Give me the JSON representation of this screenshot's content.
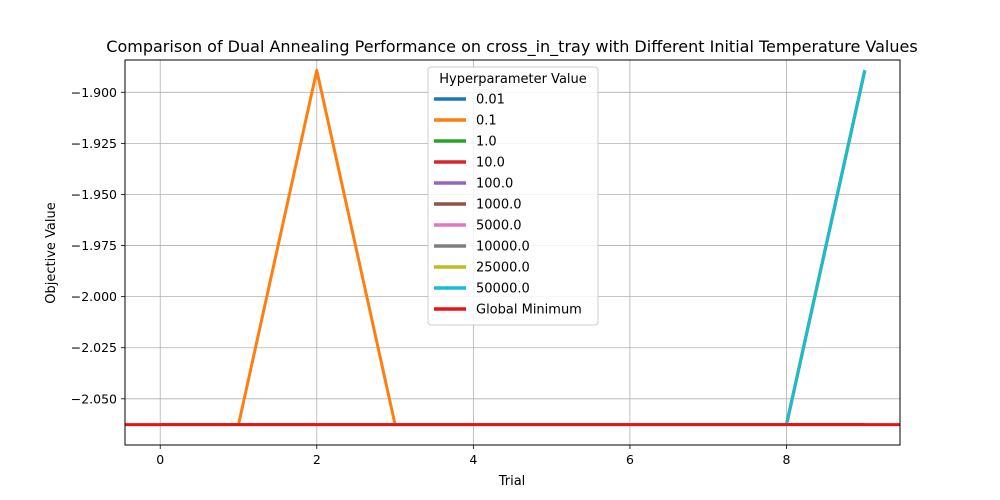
{
  "chart_data": {
    "type": "line",
    "title": "Comparison of Dual Annealing Performance on cross_in_tray with Different Initial Temperature Values",
    "xlabel": "Trial",
    "ylabel": "Objective Value",
    "xlim": [
      -0.45,
      9.45
    ],
    "ylim": [
      -2.0726,
      -1.8842
    ],
    "xticks": [
      0,
      2,
      4,
      6,
      8
    ],
    "xtick_labels": [
      "0",
      "2",
      "4",
      "6",
      "8"
    ],
    "yticks": [
      -1.9,
      -1.925,
      -1.95,
      -1.975,
      -2.0,
      -2.025,
      -2.05
    ],
    "ytick_labels": [
      "−1.900",
      "−1.925",
      "−1.950",
      "−1.975",
      "−2.000",
      "−2.025",
      "−2.050"
    ],
    "grid": true,
    "legend": {
      "title": "Hyperparameter Value",
      "placement": "top-center"
    },
    "x": [
      0,
      1,
      2,
      3,
      4,
      5,
      6,
      7,
      8,
      9
    ],
    "series": [
      {
        "name": "0.01",
        "color": "#1f77b4",
        "values": [
          -2.0626,
          -2.0626,
          -2.0626,
          -2.0626,
          -2.0626,
          -2.0626,
          -2.0626,
          -2.0626,
          -2.0626,
          -2.0626
        ]
      },
      {
        "name": "0.1",
        "color": "#ff7f0e",
        "values": [
          -2.0626,
          -2.0626,
          -1.8893,
          -2.0626,
          -2.0626,
          -2.0626,
          -2.0626,
          -2.0626,
          -2.0626,
          -1.8893
        ]
      },
      {
        "name": "1.0",
        "color": "#2ca02c",
        "values": [
          -2.0626,
          -2.0626,
          -2.0626,
          -2.0626,
          -2.0626,
          -2.0626,
          -2.0626,
          -2.0626,
          -2.0626,
          -1.8893
        ]
      },
      {
        "name": "10.0",
        "color": "#d62728",
        "values": [
          -2.0626,
          -2.0626,
          -2.0626,
          -2.0626,
          -2.0626,
          -2.0626,
          -2.0626,
          -2.0626,
          -2.0626,
          -1.8893
        ]
      },
      {
        "name": "100.0",
        "color": "#9467bd",
        "values": [
          -2.0626,
          -2.0626,
          -2.0626,
          -2.0626,
          -2.0626,
          -2.0626,
          -2.0626,
          -2.0626,
          -2.0626,
          -1.8893
        ]
      },
      {
        "name": "1000.0",
        "color": "#8c564b",
        "values": [
          -2.0626,
          -2.0626,
          -2.0626,
          -2.0626,
          -2.0626,
          -2.0626,
          -2.0626,
          -2.0626,
          -2.0626,
          -1.8893
        ]
      },
      {
        "name": "5000.0",
        "color": "#e377c2",
        "values": [
          -2.0626,
          -2.0626,
          -2.0626,
          -2.0626,
          -2.0626,
          -2.0626,
          -2.0626,
          -2.0626,
          -2.0626,
          -1.8893
        ]
      },
      {
        "name": "10000.0",
        "color": "#7f7f7f",
        "values": [
          -2.0626,
          -2.0626,
          -2.0626,
          -2.0626,
          -2.0626,
          -2.0626,
          -2.0626,
          -2.0626,
          -2.0626,
          -1.8893
        ]
      },
      {
        "name": "25000.0",
        "color": "#bcbd22",
        "values": [
          -2.0626,
          -2.0626,
          -2.0626,
          -2.0626,
          -2.0626,
          -2.0626,
          -2.0626,
          -2.0626,
          -2.0626,
          -1.8893
        ]
      },
      {
        "name": "50000.0",
        "color": "#17becf",
        "values": [
          -2.0626,
          -2.0626,
          -2.0626,
          -2.0626,
          -2.0626,
          -2.0626,
          -2.0626,
          -2.0626,
          -2.0626,
          -1.8893
        ]
      }
    ],
    "reference_lines": [
      {
        "name": "Global Minimum",
        "color": "#ee1111",
        "orientation": "horizontal",
        "value": -2.0626
      }
    ]
  }
}
